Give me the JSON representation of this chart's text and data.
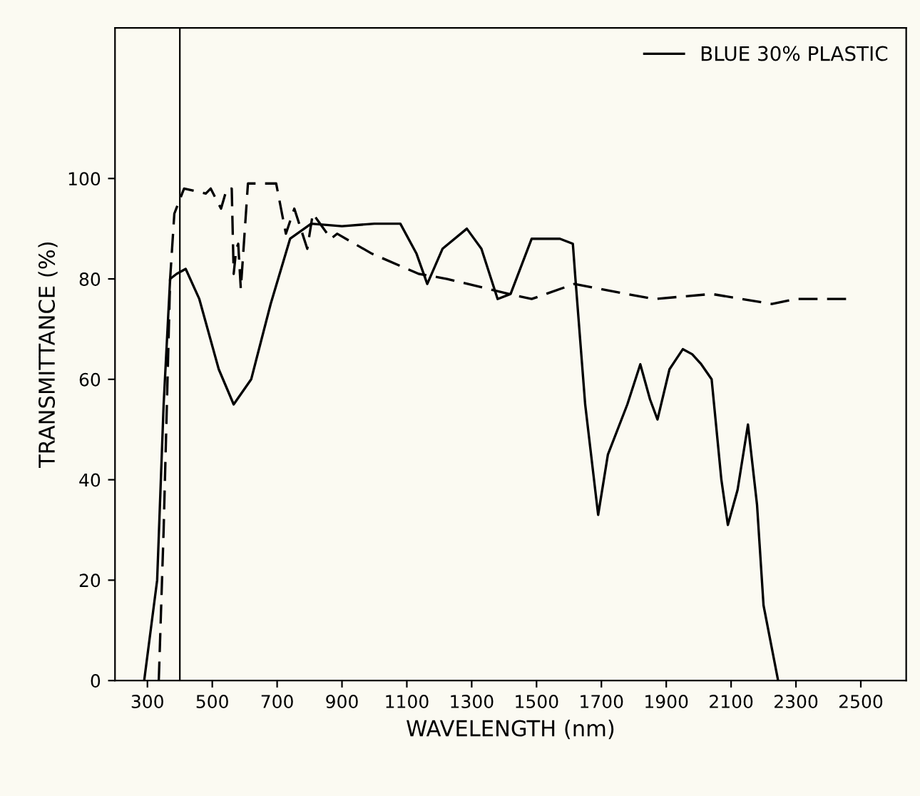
{
  "chart_data": {
    "type": "line",
    "xlabel": "WAVELENGTH (nm)",
    "ylabel": "TRANSMITTANCE (%)",
    "xlim": [
      200,
      2640
    ],
    "ylim": [
      0,
      130
    ],
    "xticks": [
      300,
      500,
      700,
      900,
      1100,
      1300,
      1500,
      1700,
      1900,
      2100,
      2300,
      2500
    ],
    "yticks": [
      0,
      20,
      40,
      60,
      80,
      100
    ],
    "grid": false,
    "legend": "top right",
    "ref_lines": [
      {
        "axis": "x",
        "value": 400,
        "color": "#000000"
      }
    ],
    "series": [
      {
        "name": "BLUE 30% PLASTIC",
        "color": "#000000",
        "line_style": "solid",
        "x": [
          290,
          330,
          350,
          370,
          390,
          418,
          460,
          520,
          566,
          620,
          680,
          740,
          805,
          900,
          1000,
          1080,
          1130,
          1163,
          1210,
          1285,
          1330,
          1380,
          1420,
          1485,
          1572,
          1612,
          1620,
          1650,
          1690,
          1720,
          1780,
          1820,
          1850,
          1873,
          1910,
          1951,
          1980,
          2008,
          2040,
          2070,
          2090,
          2120,
          2152,
          2180,
          2200,
          2245
        ],
        "values": [
          0,
          20,
          55,
          80,
          81,
          82,
          76,
          62,
          55,
          60,
          75,
          88,
          91,
          90.5,
          91,
          91,
          85,
          79,
          86,
          90,
          86,
          76,
          77,
          88,
          88,
          87,
          80,
          55,
          33,
          45,
          55,
          63,
          56,
          52,
          62,
          66,
          65,
          63,
          60,
          40,
          31,
          38,
          51,
          35,
          15,
          0
        ]
      },
      {
        "color": "#000000",
        "line_style": "dashed",
        "x": [
          335,
          350,
          370,
          383,
          413,
          480,
          495,
          527,
          545,
          560,
          566,
          574,
          580,
          588,
          610,
          697,
          727,
          753,
          793,
          810,
          866,
          885,
          993,
          1137,
          1224,
          1415,
          1485,
          1617,
          1777,
          1864,
          2040,
          2226,
          2300,
          2465
        ],
        "values": [
          0,
          30,
          80,
          93,
          98,
          97,
          98,
          94,
          98,
          98,
          81,
          86,
          87,
          78,
          99,
          99,
          89,
          94,
          86,
          93,
          88,
          89,
          85,
          81,
          80,
          77,
          76,
          79,
          77,
          76,
          77,
          75,
          76,
          76
        ]
      }
    ]
  }
}
